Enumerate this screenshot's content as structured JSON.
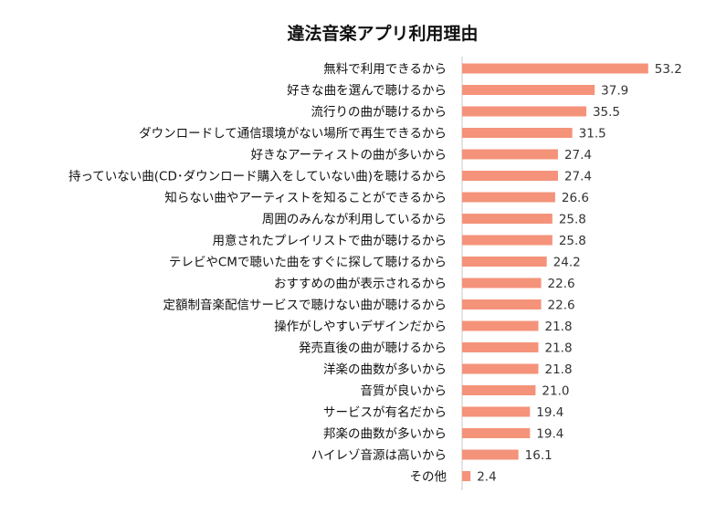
{
  "chart_data": {
    "type": "bar",
    "orientation": "horizontal",
    "title": "違法音楽アプリ利用理由",
    "xlabel": "",
    "ylabel": "",
    "xlim": [
      0,
      60
    ],
    "grid": false,
    "legend": "none",
    "bar_color": "#F4937A",
    "categories": [
      "無料で利用できるから",
      "好きな曲を選んで聴けるから",
      "流行りの曲が聴けるから",
      "ダウンロードして通信環境がない場所で再生できるから",
      "好きなアーティストの曲が多いから",
      "持っていない曲(CD･ダウンロード購入をしていない曲)を聴けるから",
      "知らない曲やアーティストを知ることができるから",
      "周囲のみんなが利用しているから",
      "用意されたプレイリストで曲が聴けるから",
      "テレビやCMで聴いた曲をすぐに探して聴けるから",
      "おすすめの曲が表示されるから",
      "定額制音楽配信サービスで聴けない曲が聴けるから",
      "操作がしやすいデザインだから",
      "発売直後の曲が聴けるから",
      "洋楽の曲数が多いから",
      "音質が良いから",
      "サービスが有名だから",
      "邦楽の曲数が多いから",
      "ハイレゾ音源は高いから",
      "その他"
    ],
    "values": [
      53.2,
      37.9,
      35.5,
      31.5,
      27.4,
      27.4,
      26.6,
      25.8,
      25.8,
      24.2,
      22.6,
      22.6,
      21.8,
      21.8,
      21.8,
      21.0,
      19.4,
      19.4,
      16.1,
      2.4
    ],
    "value_labels": [
      "53.2",
      "37.9",
      "35.5",
      "31.5",
      "27.4",
      "27.4",
      "26.6",
      "25.8",
      "25.8",
      "24.2",
      "22.6",
      "22.6",
      "21.8",
      "21.8",
      "21.8",
      "21.0",
      "19.4",
      "19.4",
      "16.1",
      "2.4"
    ]
  }
}
